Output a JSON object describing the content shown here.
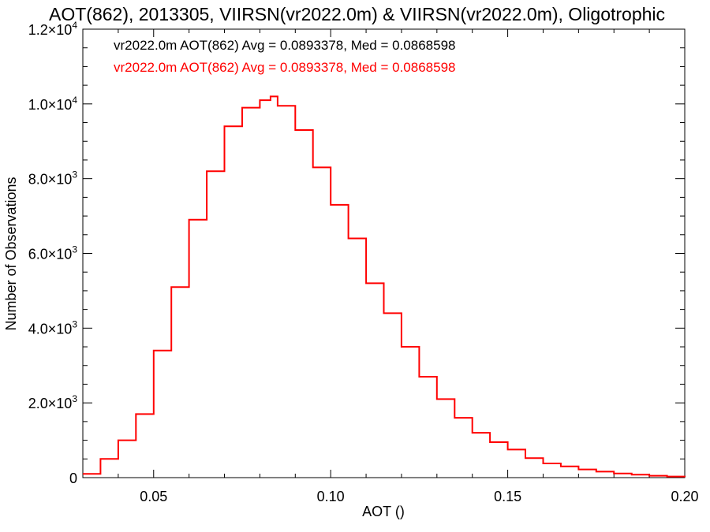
{
  "chart_data": {
    "type": "line",
    "step": true,
    "title": "AOT(862), 2013305, VIIRSN(vr2022.0m) & VIIRSN(vr2022.0m), Oligotrophic",
    "xlabel": "AOT ()",
    "ylabel": "Number of Observations",
    "xlim": [
      0.03,
      0.2
    ],
    "ylim": [
      0,
      12000
    ],
    "x_ticks": [
      {
        "value": 0.05,
        "label": "0.05"
      },
      {
        "value": 0.1,
        "label": "0.10"
      },
      {
        "value": 0.15,
        "label": "0.15"
      },
      {
        "value": 0.2,
        "label": "0.20"
      }
    ],
    "y_ticks": [
      {
        "value": 0,
        "label": "0"
      },
      {
        "value": 2000,
        "label": "2.0×10",
        "sup": "3"
      },
      {
        "value": 4000,
        "label": "4.0×10",
        "sup": "3"
      },
      {
        "value": 6000,
        "label": "6.0×10",
        "sup": "3"
      },
      {
        "value": 8000,
        "label": "8.0×10",
        "sup": "3"
      },
      {
        "value": 10000,
        "label": "1.0×10",
        "sup": "4"
      },
      {
        "value": 12000,
        "label": "1.2×10",
        "sup": "4"
      }
    ],
    "annotations": [
      {
        "text": "vr2022.0m AOT(862) Avg = 0.0893378, Med = 0.0868598",
        "color": "#000000"
      },
      {
        "text": "vr2022.0m AOT(862) Avg = 0.0893378, Med = 0.0868598",
        "color": "#ff0000"
      }
    ],
    "grid": false,
    "series": [
      {
        "color": "#ff0000",
        "x": [
          0.03,
          0.035,
          0.04,
          0.045,
          0.05,
          0.055,
          0.06,
          0.065,
          0.07,
          0.075,
          0.08,
          0.083,
          0.085,
          0.09,
          0.095,
          0.1,
          0.105,
          0.11,
          0.115,
          0.12,
          0.125,
          0.13,
          0.135,
          0.14,
          0.145,
          0.15,
          0.155,
          0.16,
          0.165,
          0.17,
          0.175,
          0.18,
          0.185,
          0.19,
          0.195,
          0.2
        ],
        "values": [
          100,
          500,
          1000,
          1700,
          3400,
          5100,
          6900,
          8200,
          9400,
          9900,
          10100,
          10200,
          9950,
          9300,
          8300,
          7300,
          6400,
          5200,
          4400,
          3500,
          2700,
          2100,
          1600,
          1200,
          950,
          750,
          520,
          380,
          300,
          220,
          160,
          110,
          80,
          50,
          30,
          15
        ]
      }
    ]
  }
}
